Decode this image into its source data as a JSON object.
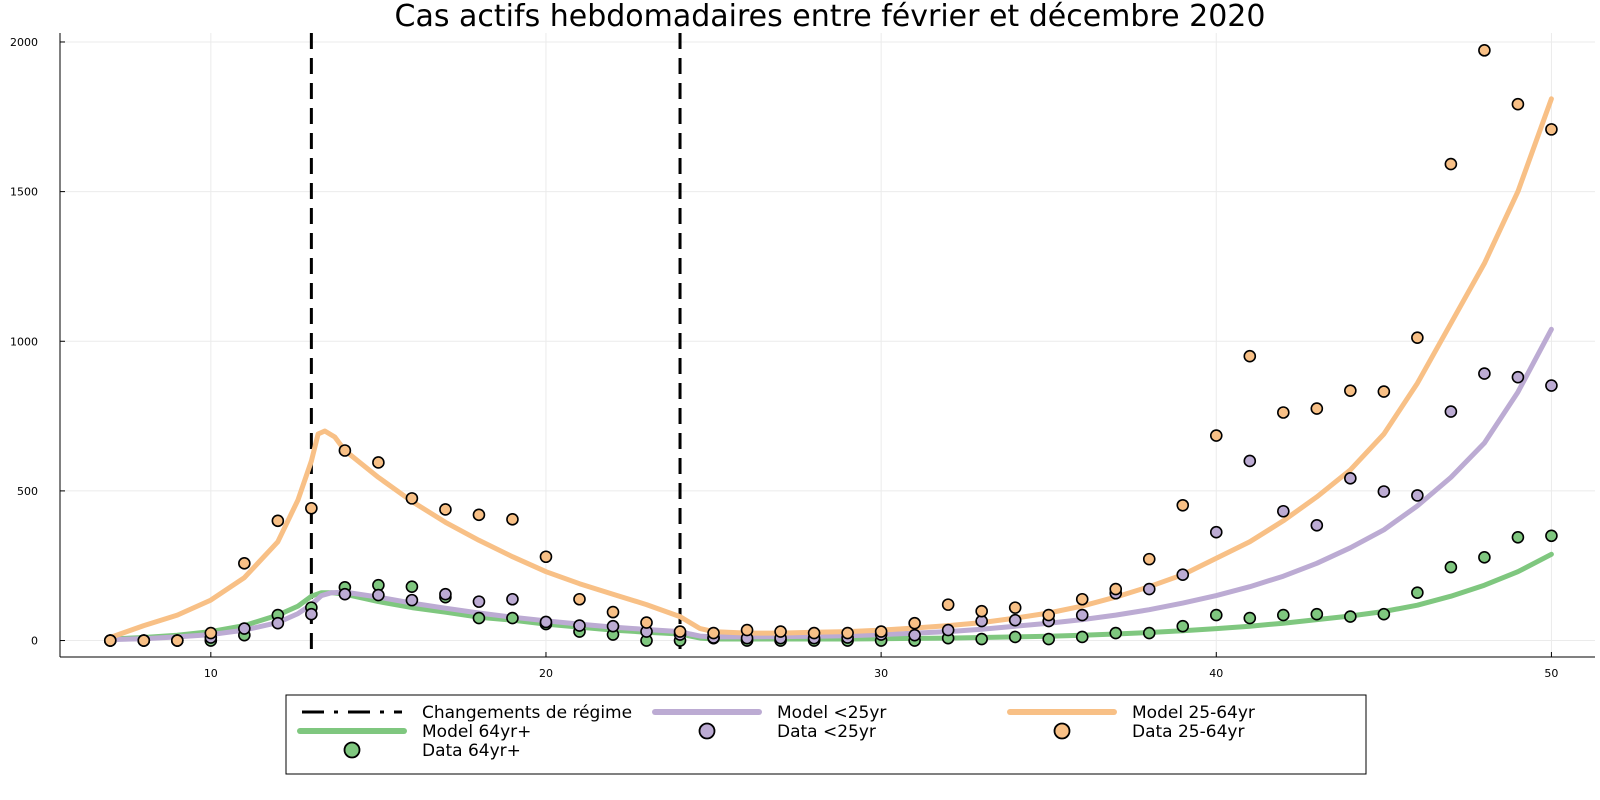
{
  "chart_data": {
    "type": "line",
    "title": "Cas actifs hebdomadaires entre février et décembre 2020",
    "xlabel": "",
    "ylabel": "",
    "xlim": [
      5.5,
      51.3
    ],
    "ylim": [
      -55,
      2030
    ],
    "x_ticks": [
      10,
      20,
      30,
      40,
      50
    ],
    "y_ticks": [
      0,
      500,
      1000,
      1500,
      2000
    ],
    "grid": true,
    "legend_position": "bottom-outside",
    "regime_changes": [
      13,
      24
    ],
    "legend": [
      {
        "label": "Changements de régime",
        "kind": "dashed-line",
        "color": "#000000"
      },
      {
        "label": "Model <25yr",
        "kind": "line",
        "color": "#bcabd3"
      },
      {
        "label": "Model 25-64yr",
        "kind": "line",
        "color": "#f8c086"
      },
      {
        "label": "Model 64yr+",
        "kind": "line",
        "color": "#7fc77f"
      },
      {
        "label": "Data <25yr",
        "kind": "marker",
        "color": "#bcabd3"
      },
      {
        "label": "Data 25-64yr",
        "kind": "marker",
        "color": "#f8c086"
      },
      {
        "label": "Data 64yr+",
        "kind": "marker",
        "color": "#7fc77f"
      }
    ],
    "model_series": [
      {
        "name": "Model 64yr+",
        "color": "#7fc77f",
        "x": [
          7,
          8,
          9,
          10,
          11,
          12,
          12.6,
          13,
          13.3,
          13.6,
          14,
          15,
          16,
          17,
          18,
          19,
          20,
          21,
          22,
          23,
          24,
          24.3,
          24.6,
          25,
          26,
          27,
          28,
          29,
          30,
          31,
          32,
          33,
          34,
          35,
          36,
          37,
          38,
          39,
          40,
          41,
          42,
          43,
          44,
          45,
          46,
          47,
          48,
          49,
          50
        ],
        "y": [
          5,
          10,
          18,
          30,
          50,
          85,
          115,
          148,
          160,
          160,
          155,
          130,
          110,
          95,
          78,
          68,
          55,
          45,
          35,
          28,
          22,
          15,
          8,
          5,
          5,
          5,
          5,
          5,
          6,
          7,
          8,
          10,
          12,
          14,
          18,
          22,
          27,
          33,
          40,
          48,
          58,
          70,
          82,
          97,
          118,
          148,
          185,
          230,
          288
        ]
      },
      {
        "name": "Model <25yr",
        "color": "#bcabd3",
        "x": [
          7,
          8,
          9,
          10,
          11,
          12,
          12.6,
          13,
          13.3,
          13.6,
          14,
          15,
          16,
          17,
          18,
          19,
          20,
          21,
          22,
          23,
          24,
          24.3,
          24.6,
          25,
          26,
          27,
          28,
          29,
          30,
          31,
          32,
          33,
          34,
          35,
          36,
          37,
          38,
          39,
          40,
          41,
          42,
          43,
          44,
          45,
          46,
          47,
          48,
          49,
          50
        ],
        "y": [
          3,
          6,
          12,
          20,
          35,
          60,
          90,
          120,
          150,
          160,
          162,
          145,
          125,
          108,
          92,
          78,
          66,
          55,
          45,
          37,
          30,
          22,
          15,
          12,
          12,
          13,
          14,
          16,
          20,
          25,
          30,
          38,
          48,
          58,
          70,
          85,
          103,
          125,
          150,
          180,
          215,
          258,
          310,
          370,
          450,
          545,
          660,
          830,
          1040
        ]
      },
      {
        "name": "Model 25-64yr",
        "color": "#f8c086",
        "x": [
          7,
          8,
          9,
          10,
          11,
          12,
          12.6,
          13,
          13.2,
          13.4,
          13.7,
          14,
          15,
          16,
          17,
          18,
          19,
          20,
          21,
          22,
          23,
          24,
          24.3,
          24.6,
          25,
          26,
          27,
          28,
          29,
          30,
          31,
          32,
          33,
          34,
          35,
          36,
          37,
          38,
          39,
          40,
          41,
          42,
          43,
          44,
          45,
          46,
          47,
          48,
          49,
          50
        ],
        "y": [
          10,
          50,
          85,
          135,
          210,
          330,
          470,
          600,
          690,
          700,
          680,
          635,
          545,
          465,
          395,
          335,
          280,
          230,
          190,
          155,
          120,
          80,
          60,
          40,
          30,
          25,
          25,
          28,
          30,
          35,
          42,
          50,
          60,
          75,
          92,
          115,
          145,
          180,
          220,
          275,
          330,
          400,
          480,
          570,
          690,
          860,
          1060,
          1260,
          1500,
          1810
        ]
      }
    ],
    "data_series": [
      {
        "name": "Data 64yr+",
        "color": "#7fc77f",
        "x": [
          7,
          8,
          9,
          10,
          11,
          12,
          13,
          14,
          15,
          16,
          17,
          18,
          19,
          20,
          21,
          22,
          23,
          24,
          25,
          26,
          27,
          28,
          29,
          30,
          31,
          32,
          33,
          34,
          35,
          36,
          37,
          38,
          39,
          40,
          41,
          42,
          43,
          44,
          45,
          46,
          47,
          48,
          49,
          50
        ],
        "y": [
          0,
          0,
          0,
          0,
          18,
          85,
          110,
          178,
          185,
          180,
          145,
          75,
          75,
          55,
          30,
          20,
          0,
          0,
          8,
          0,
          0,
          0,
          0,
          0,
          0,
          8,
          5,
          12,
          5,
          12,
          25,
          25,
          48,
          85,
          75,
          85,
          88,
          80,
          88,
          160,
          245,
          278,
          345,
          350
        ]
      },
      {
        "name": "Data <25yr",
        "color": "#bcabd3",
        "x": [
          7,
          8,
          9,
          10,
          11,
          12,
          13,
          14,
          15,
          16,
          17,
          18,
          19,
          20,
          21,
          22,
          23,
          24,
          25,
          26,
          27,
          28,
          29,
          30,
          31,
          32,
          33,
          34,
          35,
          36,
          37,
          38,
          39,
          40,
          41,
          42,
          43,
          44,
          45,
          46,
          47,
          48,
          49,
          50
        ],
        "y": [
          0,
          0,
          0,
          10,
          40,
          58,
          88,
          155,
          152,
          135,
          155,
          130,
          138,
          62,
          50,
          48,
          30,
          20,
          10,
          8,
          8,
          8,
          10,
          20,
          18,
          35,
          65,
          68,
          65,
          85,
          158,
          172,
          220,
          362,
          600,
          432,
          385,
          542,
          498,
          485,
          765,
          892,
          880,
          852
        ]
      },
      {
        "name": "Data 25-64yr",
        "color": "#f8c086",
        "x": [
          7,
          8,
          9,
          10,
          11,
          12,
          13,
          14,
          15,
          16,
          17,
          18,
          19,
          20,
          21,
          22,
          23,
          24,
          25,
          26,
          27,
          28,
          29,
          30,
          31,
          32,
          33,
          34,
          35,
          36,
          37,
          38,
          39,
          40,
          41,
          42,
          43,
          44,
          45,
          46,
          47,
          48,
          49,
          50
        ],
        "y": [
          0,
          0,
          0,
          25,
          258,
          400,
          442,
          635,
          595,
          475,
          438,
          420,
          405,
          280,
          138,
          95,
          60,
          30,
          25,
          35,
          30,
          25,
          25,
          30,
          58,
          120,
          98,
          110,
          85,
          138,
          172,
          272,
          452,
          685,
          950,
          762,
          775,
          835,
          832,
          1012,
          1592,
          1972,
          1792,
          1708
        ]
      }
    ]
  }
}
